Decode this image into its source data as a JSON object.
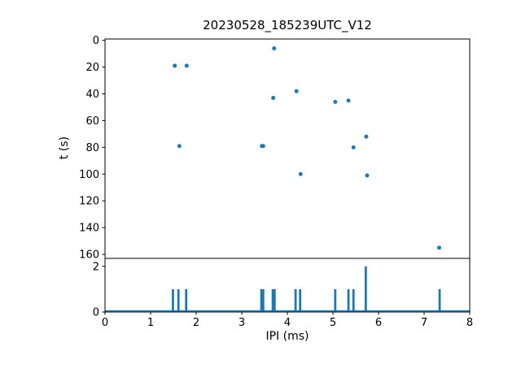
{
  "colors": {
    "accent": "#1f77b4",
    "axis": "#000000",
    "background": "#ffffff"
  },
  "chart_data": [
    {
      "type": "scatter",
      "title": "20230528_185239UTC_V12",
      "xlabel": "",
      "ylabel": "t (s)",
      "xlim": [
        0,
        8
      ],
      "ylim": [
        -1,
        163
      ],
      "y_inverted": true,
      "grid": false,
      "xticks": [
        0,
        1,
        2,
        3,
        4,
        5,
        6,
        7,
        8
      ],
      "yticks": [
        0,
        20,
        40,
        60,
        80,
        100,
        120,
        140,
        160
      ],
      "show_xtick_labels": false,
      "points": {
        "x": [
          1.53,
          1.63,
          1.79,
          3.44,
          3.47,
          3.69,
          3.71,
          4.2,
          4.29,
          5.05,
          5.34,
          5.45,
          5.73,
          5.75,
          7.33
        ],
        "y": [
          19,
          79,
          19,
          79,
          79,
          43,
          6,
          38,
          100,
          46,
          45,
          80,
          72,
          101,
          155
        ]
      }
    },
    {
      "type": "bar",
      "title": "",
      "xlabel": "IPI (ms)",
      "ylabel": "",
      "xlim": [
        0,
        8
      ],
      "ylim": [
        0,
        2.35
      ],
      "y_inverted": false,
      "grid": false,
      "xticks": [
        0,
        1,
        2,
        3,
        4,
        5,
        6,
        7,
        8
      ],
      "yticks": [
        0,
        2
      ],
      "show_xtick_labels": true,
      "bar_width": 0.05,
      "baseline": true,
      "bars": [
        {
          "x": 1.49,
          "h": 1
        },
        {
          "x": 1.61,
          "h": 1
        },
        {
          "x": 1.78,
          "h": 1
        },
        {
          "x": 3.43,
          "h": 1
        },
        {
          "x": 3.47,
          "h": 1
        },
        {
          "x": 3.68,
          "h": 1
        },
        {
          "x": 3.72,
          "h": 1
        },
        {
          "x": 4.18,
          "h": 1
        },
        {
          "x": 4.28,
          "h": 1
        },
        {
          "x": 5.05,
          "h": 1
        },
        {
          "x": 5.34,
          "h": 1
        },
        {
          "x": 5.45,
          "h": 1
        },
        {
          "x": 5.72,
          "h": 2
        },
        {
          "x": 7.34,
          "h": 1
        }
      ]
    }
  ]
}
